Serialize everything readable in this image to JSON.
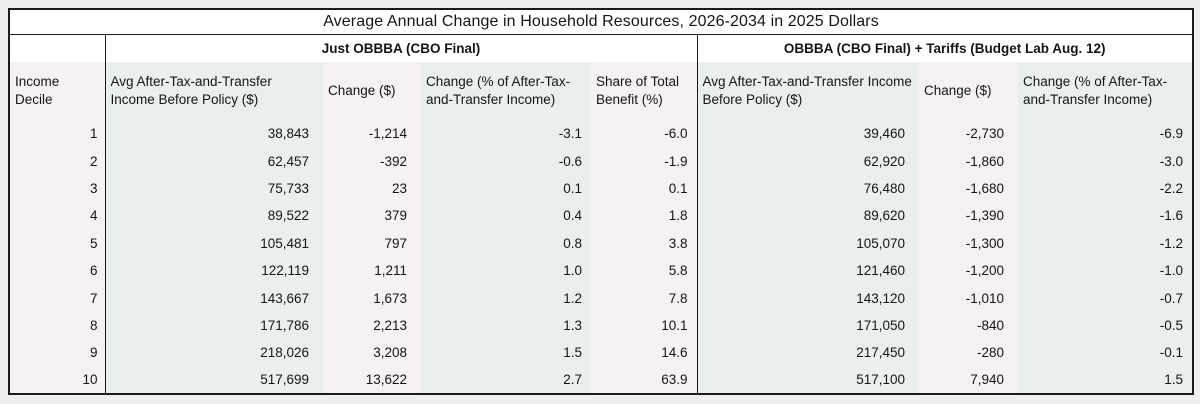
{
  "chart_data": {
    "type": "table",
    "title": "Average Annual Change in Household Resources, 2026-2034 in 2025 Dollars",
    "groups": {
      "left": "Just OBBBA (CBO Final)",
      "right": "OBBBA (CBO Final) + Tariffs (Budget Lab Aug. 12)"
    },
    "columns": [
      "Income Decile",
      "Avg After-Tax-and-Transfer Income Before Policy ($)",
      "Change ($)",
      "Change (% of After-Tax-and-Transfer Income)",
      "Share of Total Benefit (%)",
      "Avg After-Tax-and-Transfer Income Before Policy ($)",
      "Change ($)",
      "Change (% of After-Tax-and-Transfer Income)"
    ],
    "rows": [
      [
        "1",
        "38,843",
        "-1,214",
        "-3.1",
        "-6.0",
        "39,460",
        "-2,730",
        "-6.9"
      ],
      [
        "2",
        "62,457",
        "-392",
        "-0.6",
        "-1.9",
        "62,920",
        "-1,860",
        "-3.0"
      ],
      [
        "3",
        "75,733",
        "23",
        "0.1",
        "0.1",
        "76,480",
        "-1,680",
        "-2.2"
      ],
      [
        "4",
        "89,522",
        "379",
        "0.4",
        "1.8",
        "89,620",
        "-1,390",
        "-1.6"
      ],
      [
        "5",
        "105,481",
        "797",
        "0.8",
        "3.8",
        "105,070",
        "-1,300",
        "-1.2"
      ],
      [
        "6",
        "122,119",
        "1,211",
        "1.0",
        "5.8",
        "121,460",
        "-1,200",
        "-1.0"
      ],
      [
        "7",
        "143,667",
        "1,673",
        "1.2",
        "7.8",
        "143,120",
        "-1,010",
        "-0.7"
      ],
      [
        "8",
        "171,786",
        "2,213",
        "1.3",
        "10.1",
        "171,050",
        "-840",
        "-0.5"
      ],
      [
        "9",
        "218,026",
        "3,208",
        "1.5",
        "14.6",
        "217,450",
        "-280",
        "-0.1"
      ],
      [
        "10",
        "517,699",
        "13,622",
        "2.7",
        "63.9",
        "517,100",
        "7,940",
        "1.5"
      ]
    ]
  },
  "colors": {
    "page_background": "#efeef0",
    "stripe_pink": "#f6f1f5",
    "stripe_green": "#e9efec",
    "border": "#1a1a1a",
    "text": "#151515"
  }
}
